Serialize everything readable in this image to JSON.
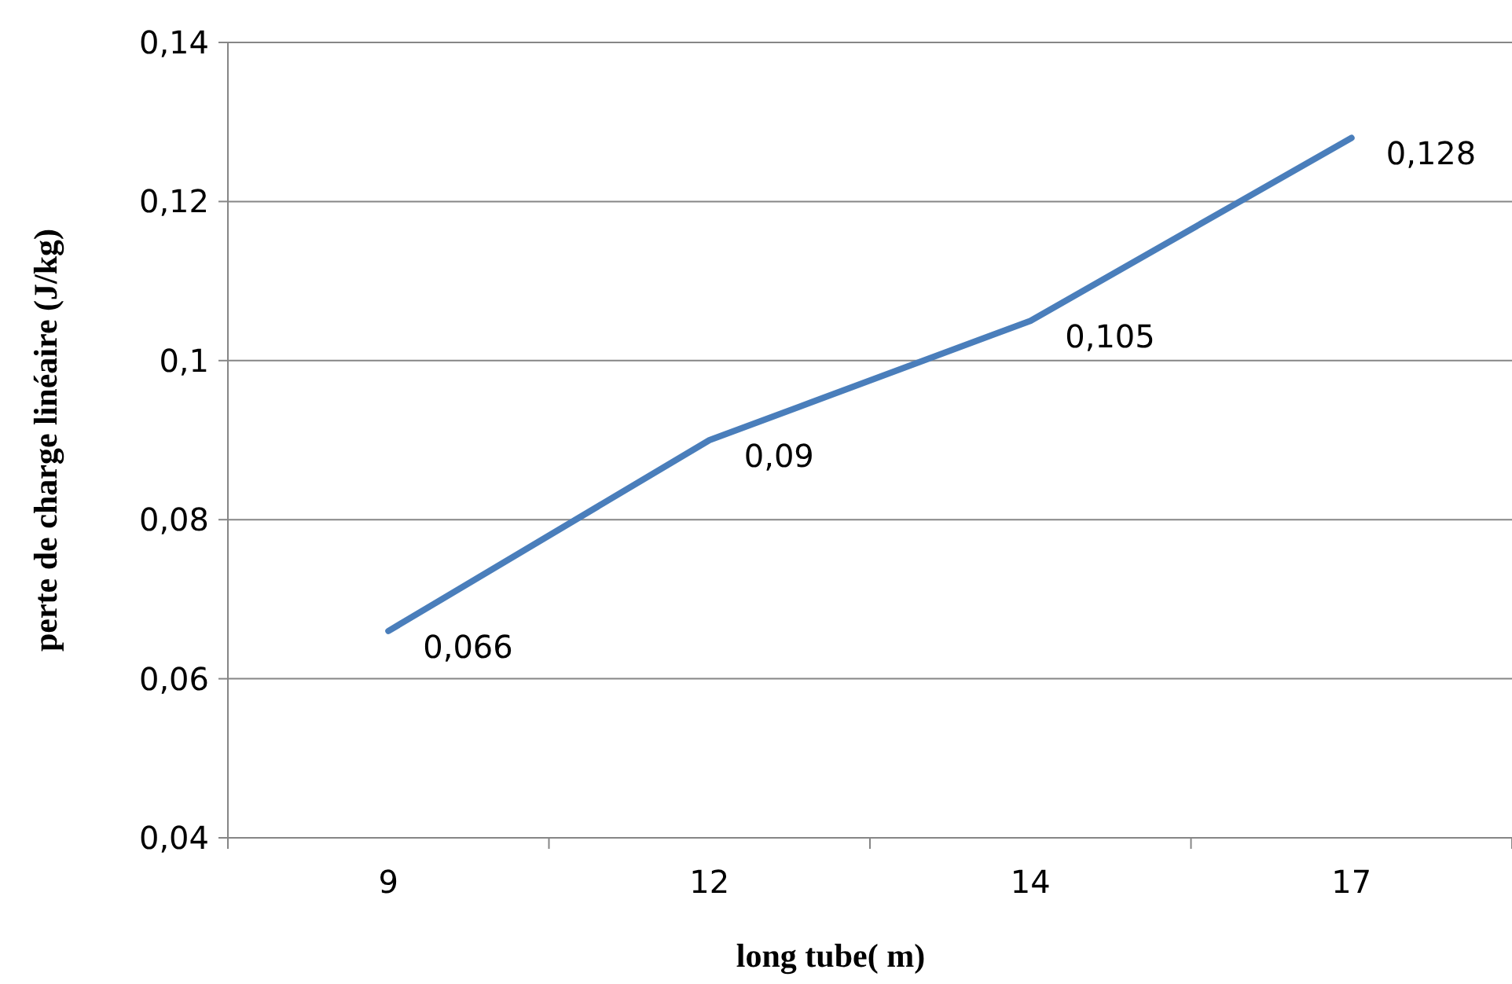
{
  "chart_data": {
    "type": "line",
    "xlabel": "long tube( m)",
    "ylabel": "perte de charge linéaire (J/kg)",
    "categories": [
      "9",
      "12",
      "14",
      "17"
    ],
    "series": [
      {
        "color": "#4a7ebb",
        "values": [
          0.066,
          0.09,
          0.105,
          0.128
        ],
        "value_labels": [
          "0,066",
          "0,09",
          "0,105",
          "0,128"
        ]
      }
    ],
    "ylim": [
      0.04,
      0.14
    ],
    "yticks": [
      {
        "value": 0.04,
        "label": "0,04"
      },
      {
        "value": 0.06,
        "label": "0,06"
      },
      {
        "value": 0.08,
        "label": "0,08"
      },
      {
        "value": 0.1,
        "label": "0,1"
      },
      {
        "value": 0.12,
        "label": "0,12"
      },
      {
        "value": 0.14,
        "label": "0,14"
      }
    ],
    "grid": "y",
    "marker": "none",
    "line_style": "solid"
  }
}
